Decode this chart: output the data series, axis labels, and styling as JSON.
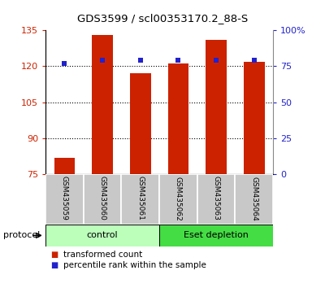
{
  "title": "GDS3599 / scl00353170.2_88-S",
  "samples": [
    "GSM435059",
    "GSM435060",
    "GSM435061",
    "GSM435062",
    "GSM435063",
    "GSM435064"
  ],
  "red_values": [
    82,
    133,
    117,
    121,
    131,
    122
  ],
  "blue_values": [
    77,
    79,
    79,
    79,
    79,
    79
  ],
  "ylim_left": [
    75,
    135
  ],
  "yticks_left": [
    75,
    90,
    105,
    120,
    135
  ],
  "yticks_right": [
    0,
    25,
    50,
    75,
    100
  ],
  "ytick_labels_right": [
    "0",
    "25",
    "50",
    "75",
    "100%"
  ],
  "bar_color": "#cc2200",
  "blue_color": "#2222cc",
  "group_control_color": "#bbffbb",
  "group_eset_color": "#44dd44",
  "groups": [
    {
      "label": "control",
      "samples": [
        0,
        1,
        2
      ],
      "color": "#bbffbb"
    },
    {
      "label": "Eset depletion",
      "samples": [
        3,
        4,
        5
      ],
      "color": "#44dd44"
    }
  ],
  "protocol_label": "protocol",
  "legend_red": "transformed count",
  "legend_blue": "percentile rank within the sample",
  "left_tick_color": "#cc2200",
  "right_tick_color": "#2222cc",
  "background_label": "#c8c8c8",
  "fig_width": 4.0,
  "fig_height": 3.54,
  "bar_width": 0.55
}
